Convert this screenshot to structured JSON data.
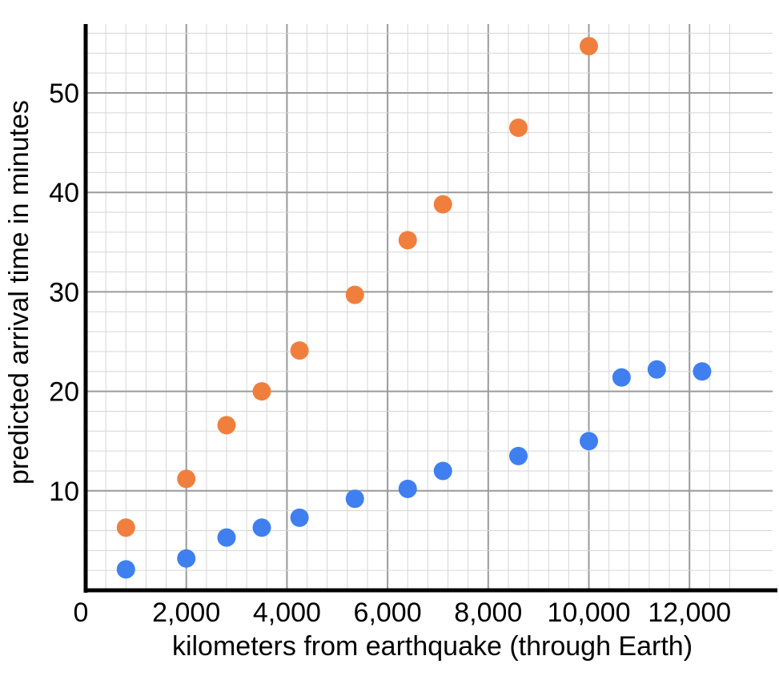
{
  "colors": {
    "background": "#ffffff",
    "minor_grid": "#d6d6d6",
    "major_grid": "#9a9a9a",
    "axis": "#000000",
    "series_orange": "#f07f3e",
    "series_blue": "#3f7ff0"
  },
  "chart_data": {
    "type": "scatter",
    "title": "",
    "xlabel": "kilometers from earthquake (through Earth)",
    "ylabel": "predicted arrival time in minutes",
    "xlim": [
      0,
      13000
    ],
    "ylim": [
      0,
      57
    ],
    "grid": true,
    "x_ticks": [
      {
        "value": 0,
        "label": "0"
      },
      {
        "value": 2000,
        "label": "2,000"
      },
      {
        "value": 4000,
        "label": "4,000"
      },
      {
        "value": 6000,
        "label": "6,000"
      },
      {
        "value": 8000,
        "label": "8,000"
      },
      {
        "value": 10000,
        "label": "10,000"
      },
      {
        "value": 12000,
        "label": "12,000"
      }
    ],
    "y_ticks": [
      {
        "value": 10,
        "label": "10"
      },
      {
        "value": 20,
        "label": "20"
      },
      {
        "value": 30,
        "label": "30"
      },
      {
        "value": 40,
        "label": "40"
      },
      {
        "value": 50,
        "label": "50"
      }
    ],
    "series": [
      {
        "color": "#f07f3e",
        "points": [
          {
            "x": 800,
            "y": 6.3
          },
          {
            "x": 2000,
            "y": 11.2
          },
          {
            "x": 2800,
            "y": 16.6
          },
          {
            "x": 3500,
            "y": 20.0
          },
          {
            "x": 4250,
            "y": 24.1
          },
          {
            "x": 5350,
            "y": 29.7
          },
          {
            "x": 6400,
            "y": 35.2
          },
          {
            "x": 7100,
            "y": 38.8
          },
          {
            "x": 8600,
            "y": 46.5
          },
          {
            "x": 10000,
            "y": 54.7
          }
        ]
      },
      {
        "color": "#3f7ff0",
        "points": [
          {
            "x": 800,
            "y": 2.1
          },
          {
            "x": 2000,
            "y": 3.2
          },
          {
            "x": 2800,
            "y": 5.3
          },
          {
            "x": 3500,
            "y": 6.3
          },
          {
            "x": 4250,
            "y": 7.3
          },
          {
            "x": 5350,
            "y": 9.2
          },
          {
            "x": 6400,
            "y": 10.2
          },
          {
            "x": 7100,
            "y": 12.0
          },
          {
            "x": 8600,
            "y": 13.5
          },
          {
            "x": 10000,
            "y": 15.0
          },
          {
            "x": 10650,
            "y": 21.4
          },
          {
            "x": 11350,
            "y": 22.2
          },
          {
            "x": 12250,
            "y": 22.0
          }
        ]
      }
    ]
  }
}
